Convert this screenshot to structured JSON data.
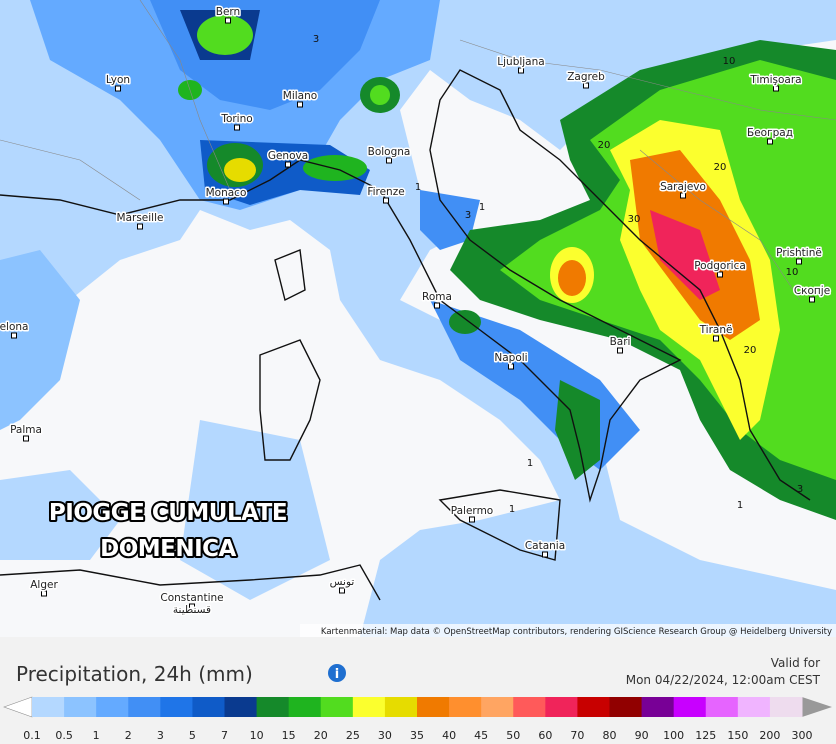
{
  "map": {
    "overlay": [
      "PIOGGE CUMULATE",
      "DOMENICA"
    ],
    "attribution": "Kartenmaterial: Map data © OpenStreetMap contributors, rendering GIScience Research Group @ Heidelberg University",
    "cities": [
      "Bern",
      "Lyon",
      "Milano",
      "Torino",
      "Genova",
      "Bologna",
      "Monaco",
      "Firenze",
      "Marseille",
      "Ljubljana",
      "Zagreb",
      "Timişoara",
      "Београд",
      "Sarajevo",
      "Podgorica",
      "Prishtinë",
      "Скопје",
      "Tiranë",
      "Roma",
      "Bari",
      "Napoli",
      "Palma",
      "elona",
      "Palermo",
      "Catania",
      "Alger",
      "Constantine",
      "قسنطينة",
      "تونس"
    ],
    "contour_labels": [
      "3",
      "1",
      "3",
      "1",
      "20",
      "30",
      "20",
      "10",
      "20",
      "3",
      "1",
      "1",
      "1",
      "10"
    ]
  },
  "legend": {
    "title": "Precipitation, 24h (mm)",
    "valid_label": "Valid for",
    "valid_time": "Mon 04/22/2024, 12:00am CEST",
    "labels": [
      "0.1",
      "0.5",
      "1",
      "2",
      "3",
      "5",
      "7",
      "10",
      "15",
      "20",
      "25",
      "30",
      "35",
      "40",
      "45",
      "50",
      "60",
      "70",
      "80",
      "90",
      "100",
      "125",
      "150",
      "200",
      "300"
    ],
    "colors": [
      "#b4d8ff",
      "#8cc3ff",
      "#64aaff",
      "#418ff5",
      "#1f75e8",
      "#0f5bc8",
      "#0a3a8f",
      "#15892a",
      "#1fb41f",
      "#52dc1f",
      "#fbff2e",
      "#e6dc00",
      "#f07a00",
      "#ff8f2e",
      "#ffa562",
      "#ff5a5a",
      "#f0245a",
      "#c80000",
      "#910000",
      "#780096",
      "#c800ff",
      "#e664ff",
      "#f0b4ff",
      "#eedcee",
      "#c8c8c8"
    ]
  }
}
